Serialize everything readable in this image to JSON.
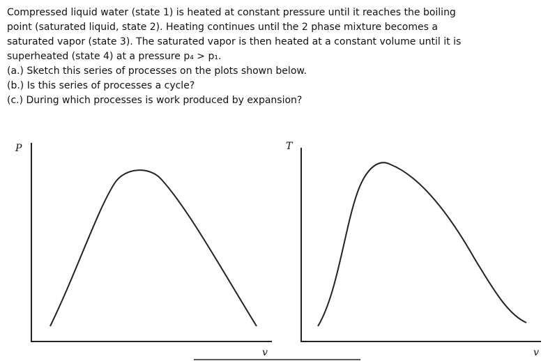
{
  "problem": {
    "lines": [
      "Compressed liquid water (state 1) is heated at constant pressure until it reaches the boiling",
      "point (saturated liquid, state 2). Heating continues until the 2 phase mixture becomes a",
      "saturated vapor (state 3). The saturated vapor is then heated at a constant volume until it is",
      "superheated (state 4) at a pressure p₄ > p₁."
    ],
    "questions": [
      "(a.) Sketch this series of processes on the plots shown below.",
      "(b.) Is this series of processes a cycle?",
      "(c.) During which processes is work produced by expansion?"
    ]
  },
  "plots": [
    {
      "y_label": "P",
      "x_label": "v"
    },
    {
      "y_label": "T",
      "x_label": "v"
    }
  ]
}
